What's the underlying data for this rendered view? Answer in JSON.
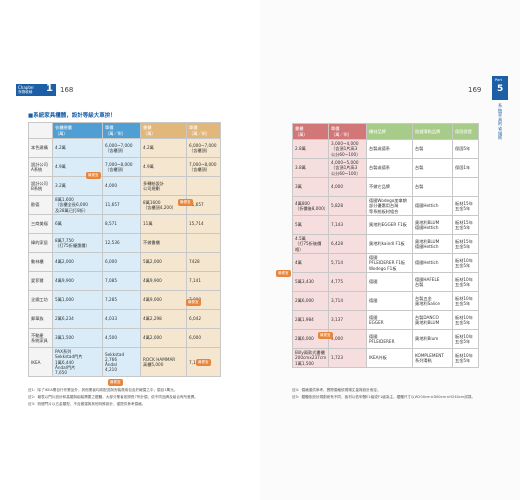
{
  "left": {
    "chapter": {
      "label": "Chapter",
      "number": "1",
      "subtitle": "衣物收納"
    },
    "page_number": "168",
    "heading": "■系統家具櫃體，設計等級大車拚！",
    "table": {
      "header": [
        "",
        "衣櫃總價\n（萬）",
        "單價\n（萬／呎）",
        "書櫃\n（萬）",
        "單價\n（萬／呎）"
      ],
      "rows": [
        [
          "本色建構",
          "4.2萬",
          "6,000~7,000\n（含櫃頂）",
          "4.2萬",
          "6,000~7,000\n（含櫃頂）"
        ],
        [
          "設計公司\nA系統",
          "4.9萬",
          "7,000~8,000\n（含櫃頂）",
          "4.9萬",
          "7,000~8,000\n（含櫃頂）"
        ],
        [
          "設計公司\nB系統",
          "3.2萬",
          "4,000",
          "多轉給設計\n公司規劃",
          ""
        ],
        [
          "歐德",
          "8萬1,600\n（含櫃全長6,000\n及28萬已打8折）",
          "11,657",
          "8萬1600\n（含櫃頂4,200）",
          "11,657"
        ],
        [
          "三商美福",
          "6萬",
          "8,571",
          "11萬",
          "15,714"
        ],
        [
          "緯的家居",
          "8萬7,750\n（打75折優惠價）",
          "12,536",
          "不做書櫃",
          ""
        ],
        [
          "動林櫃",
          "4萬2,000",
          "6,000",
          "5萬2,000",
          "7428"
        ],
        [
          "愛菲爾",
          "4萬9,900",
          "7,085",
          "4萬9,900",
          "7,141"
        ],
        [
          "全鋼工坊",
          "5萬1,000",
          "7,285",
          "4萬9,000",
          "7,000"
        ],
        [
          "郵華族",
          "2萬6,234",
          "4,033",
          "4萬2,298",
          "6,042"
        ],
        [
          "不動產\n系統家具",
          "3萬1,500",
          "4,500",
          "4萬2,000",
          "6,000"
        ],
        [
          "IKEA",
          "PAX系列\nSekkstad門片\n1萬6,440\nÅndal門片\n7,650",
          "Sekkstad\n2,766\nÅndal\n4,210",
          "ROCK HAMMAR\n高櫃5,000",
          "7,142"
        ]
      ]
    },
    "badges": [
      "最便宜",
      "最便宜",
      "最便宜",
      "最便宜",
      "最便宜"
    ],
    "notes": [
      "註1：除了IKEA需自行作業品外，其他業者均將配送與安裝費用包含於報價之中，價目1萬元。",
      "註2：報表以門片設計和高櫃與組裝需要之櫃體，大部分業者依照長7呎計價，依不同品牌及組合有所差異。",
      "註3：鉸鏈門片以五金類型，不含搬運與其他特殊設計，僅提供參考價格。"
    ]
  },
  "right": {
    "page_number": "169",
    "part": {
      "label": "Part",
      "number": "5",
      "title": "系統家具的省錢術"
    },
    "table": {
      "header": [
        "書櫃\n（萬）",
        "單價\n（萬／呎）",
        "櫃材品牌",
        "鉸鏈滑軌品牌",
        "保固保證"
      ],
      "rows": [
        [
          "2.8萬",
          "3,000~4,000\n（含頂1片高3\n公分60~100）",
          "台製或德系",
          "台製",
          "保固5年"
        ],
        [
          "3.8萬",
          "4,000~5,000\n（含頂1片高3\n公分60~100）",
          "台製或德系",
          "台製",
          "保固1年"
        ],
        [
          "3萬",
          "4,000",
          "不做它品牌",
          "台製",
          ""
        ],
        [
          "4萬800\n（折價後8,000）",
          "5,828",
          "德國Wodego加拿朗\n部分優惠用台灣\n等系統板材組合",
          "德國Hettich",
          "板材15年\n五金5年"
        ],
        [
          "5萬",
          "7,143",
          "奧地利EGGER F1板",
          "奧地利BLUM\n德國Hettich",
          "板材15年\n五金5年"
        ],
        [
          "4.5萬\n（打75折後價格）",
          "6,428",
          "奧地利kaindl F1板",
          "奧地利BLUM\n德國Hettich",
          "板材15年\n五金5年"
        ],
        [
          "4萬",
          "5,714",
          "德國\nPFLEIDERER F1板\nWodego F1板",
          "德國Hettich",
          "板材10年\n五金5年"
        ],
        [
          "5萬3,430",
          "4,775",
          "德國",
          "德國HAFELE\n台製",
          "板材10年\n五金5年"
        ],
        [
          "2萬6,000",
          "3,714",
          "德國",
          "台製五金\n奧地利Salice",
          "板材10年\n五金5年"
        ],
        [
          "2萬1,984",
          "3,137",
          "德國\nEGGER",
          "台製DANCO\n奧地利BLUM",
          "板材10年\n五金5年"
        ],
        [
          "2萬6,000",
          "4,000",
          "德國\nPFLEIDERER",
          "奧地利Blum",
          "板材10年\n五金5年"
        ],
        [
          "Billy兩款式書櫃\n200cmx237cm\n1萬1,500",
          "1,723",
          "IKEA外板",
          "KOMPLEMENT\n系列滑軌",
          "板材10年\n五金5年"
        ]
      ]
    },
    "badges": [
      "最便宜",
      "最便宜"
    ],
    "notes": [
      "註4：價格僅供參考，實際價格依現場丈量與設計而定。",
      "註5：櫃體依設計規劃而有不同，板材以低甲醛E1級或F1級為主，櫃體尺寸以W200cm×D60cm×H240cm試算。"
    ]
  }
}
